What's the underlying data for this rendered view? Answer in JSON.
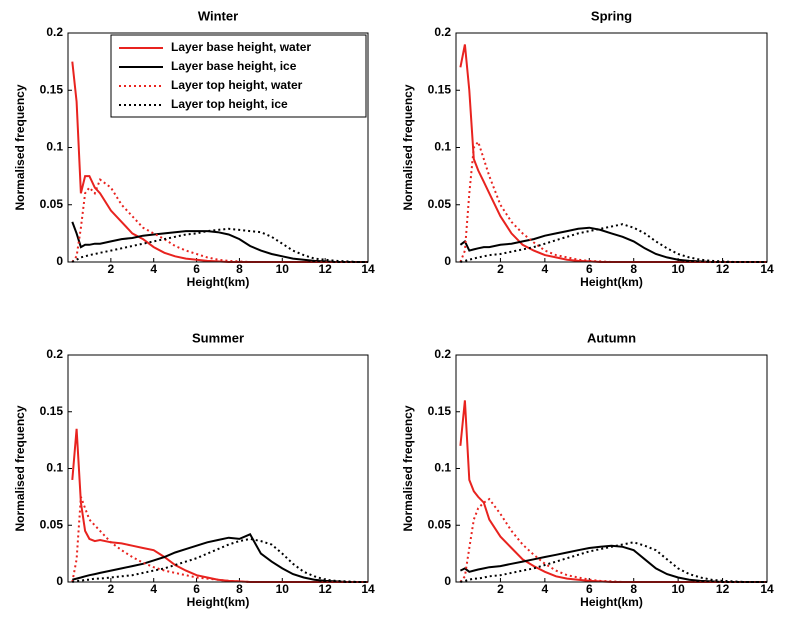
{
  "chart_data": [
    {
      "type": "line",
      "title": "Winter",
      "x_label": "Height(km)",
      "y_label": "Normalised frequency",
      "x": [
        0.2,
        0.4,
        0.6,
        0.8,
        1,
        1.25,
        1.5,
        2,
        2.5,
        3,
        3.5,
        4,
        4.5,
        5,
        5.5,
        6,
        6.5,
        7,
        7.5,
        8,
        8.5,
        9,
        9.5,
        10,
        10.5,
        11,
        11.5,
        12,
        12.5,
        13,
        13.5,
        14
      ],
      "xlim": [
        0,
        14
      ],
      "xticks": [
        2,
        4,
        6,
        8,
        10,
        12,
        14
      ],
      "ylim": [
        0,
        0.2
      ],
      "yticks": [
        0,
        0.05,
        0.1,
        0.15,
        0.2
      ],
      "legend": "upper right",
      "series": [
        {
          "name": "Layer base height, water",
          "color": "#e8231f",
          "linestyle": "solid",
          "values": [
            0.175,
            0.14,
            0.06,
            0.075,
            0.075,
            0.065,
            0.06,
            0.045,
            0.035,
            0.025,
            0.02,
            0.013,
            0.008,
            0.005,
            0.003,
            0.002,
            0.001,
            0.0005,
            0,
            0,
            0,
            0,
            0,
            0,
            0,
            0,
            0,
            0,
            0,
            0,
            0,
            0
          ]
        },
        {
          "name": "Layer base height, ice",
          "color": "#000000",
          "linestyle": "solid",
          "values": [
            0.035,
            0.025,
            0.013,
            0.015,
            0.015,
            0.016,
            0.016,
            0.018,
            0.02,
            0.021,
            0.023,
            0.024,
            0.025,
            0.026,
            0.027,
            0.027,
            0.027,
            0.026,
            0.024,
            0.02,
            0.014,
            0.01,
            0.007,
            0.005,
            0.003,
            0.002,
            0.001,
            0.0005,
            0,
            0,
            0,
            0
          ]
        },
        {
          "name": "Layer top height, water",
          "color": "#e8231f",
          "linestyle": "dotted",
          "values": [
            0,
            0.005,
            0.03,
            0.06,
            0.065,
            0.06,
            0.072,
            0.065,
            0.05,
            0.04,
            0.03,
            0.025,
            0.02,
            0.014,
            0.01,
            0.007,
            0.004,
            0.002,
            0.001,
            0.0005,
            0,
            0,
            0,
            0,
            0,
            0,
            0,
            0,
            0,
            0,
            0,
            0
          ]
        },
        {
          "name": "Layer top height, ice",
          "color": "#000000",
          "linestyle": "dotted",
          "values": [
            0,
            0.002,
            0.004,
            0.005,
            0.006,
            0.007,
            0.008,
            0.01,
            0.012,
            0.014,
            0.016,
            0.018,
            0.02,
            0.022,
            0.024,
            0.025,
            0.027,
            0.028,
            0.029,
            0.028,
            0.027,
            0.026,
            0.022,
            0.016,
            0.01,
            0.006,
            0.003,
            0.002,
            0.001,
            0.0005,
            0,
            0
          ]
        }
      ]
    },
    {
      "type": "line",
      "title": "Spring",
      "x_label": "Height(km)",
      "y_label": "Normalised frequency",
      "x": [
        0.2,
        0.4,
        0.6,
        0.8,
        1,
        1.25,
        1.5,
        2,
        2.5,
        3,
        3.5,
        4,
        4.5,
        5,
        5.5,
        6,
        6.5,
        7,
        7.5,
        8,
        8.5,
        9,
        9.5,
        10,
        10.5,
        11,
        11.5,
        12,
        12.5,
        13,
        13.5,
        14
      ],
      "xlim": [
        0,
        14
      ],
      "xticks": [
        2,
        4,
        6,
        8,
        10,
        12,
        14
      ],
      "ylim": [
        0,
        0.2
      ],
      "yticks": [
        0,
        0.05,
        0.1,
        0.15,
        0.2
      ],
      "series": [
        {
          "color": "#e8231f",
          "linestyle": "solid",
          "values": [
            0.17,
            0.19,
            0.15,
            0.09,
            0.08,
            0.07,
            0.06,
            0.04,
            0.025,
            0.015,
            0.01,
            0.006,
            0.004,
            0.002,
            0.001,
            0.0005,
            0,
            0,
            0,
            0,
            0,
            0,
            0,
            0,
            0,
            0,
            0,
            0,
            0,
            0,
            0,
            0
          ]
        },
        {
          "color": "#000000",
          "linestyle": "solid",
          "values": [
            0.015,
            0.018,
            0.01,
            0.011,
            0.012,
            0.013,
            0.013,
            0.015,
            0.016,
            0.018,
            0.02,
            0.023,
            0.025,
            0.027,
            0.029,
            0.03,
            0.028,
            0.025,
            0.022,
            0.018,
            0.012,
            0.007,
            0.004,
            0.002,
            0.001,
            0.0005,
            0,
            0,
            0,
            0,
            0,
            0
          ]
        },
        {
          "color": "#e8231f",
          "linestyle": "dotted",
          "values": [
            0,
            0.01,
            0.06,
            0.1,
            0.105,
            0.09,
            0.075,
            0.05,
            0.035,
            0.025,
            0.017,
            0.01,
            0.006,
            0.004,
            0.002,
            0.001,
            0.0005,
            0,
            0,
            0,
            0,
            0,
            0,
            0,
            0,
            0,
            0,
            0,
            0,
            0,
            0,
            0
          ]
        },
        {
          "color": "#000000",
          "linestyle": "dotted",
          "values": [
            0,
            0.001,
            0.002,
            0.003,
            0.004,
            0.005,
            0.006,
            0.007,
            0.009,
            0.011,
            0.013,
            0.016,
            0.019,
            0.022,
            0.025,
            0.027,
            0.029,
            0.031,
            0.033,
            0.03,
            0.025,
            0.018,
            0.012,
            0.007,
            0.004,
            0.002,
            0.001,
            0.0005,
            0,
            0,
            0,
            0
          ]
        }
      ]
    },
    {
      "type": "line",
      "title": "Summer",
      "x_label": "Height(km)",
      "y_label": "Normalised frequency",
      "x": [
        0.2,
        0.4,
        0.6,
        0.8,
        1,
        1.25,
        1.5,
        2,
        2.5,
        3,
        3.5,
        4,
        4.5,
        5,
        5.5,
        6,
        6.5,
        7,
        7.5,
        8,
        8.5,
        9,
        9.5,
        10,
        10.5,
        11,
        11.5,
        12,
        12.5,
        13,
        13.5,
        14
      ],
      "xlim": [
        0,
        14
      ],
      "xticks": [
        2,
        4,
        6,
        8,
        10,
        12,
        14
      ],
      "ylim": [
        0,
        0.2
      ],
      "yticks": [
        0,
        0.05,
        0.1,
        0.15,
        0.2
      ],
      "series": [
        {
          "color": "#e8231f",
          "linestyle": "solid",
          "values": [
            0.09,
            0.135,
            0.07,
            0.045,
            0.038,
            0.036,
            0.037,
            0.035,
            0.034,
            0.032,
            0.03,
            0.028,
            0.022,
            0.015,
            0.01,
            0.006,
            0.004,
            0.002,
            0.001,
            0.0005,
            0,
            0,
            0,
            0,
            0,
            0,
            0,
            0,
            0,
            0,
            0,
            0
          ]
        },
        {
          "color": "#000000",
          "linestyle": "solid",
          "values": [
            0.002,
            0.003,
            0.004,
            0.005,
            0.006,
            0.007,
            0.008,
            0.01,
            0.012,
            0.014,
            0.016,
            0.019,
            0.022,
            0.026,
            0.029,
            0.032,
            0.035,
            0.037,
            0.039,
            0.038,
            0.042,
            0.025,
            0.018,
            0.012,
            0.007,
            0.004,
            0.002,
            0.001,
            0.0005,
            0,
            0,
            0
          ]
        },
        {
          "color": "#e8231f",
          "linestyle": "dotted",
          "values": [
            0,
            0.02,
            0.075,
            0.065,
            0.055,
            0.05,
            0.045,
            0.035,
            0.028,
            0.022,
            0.017,
            0.013,
            0.01,
            0.008,
            0.006,
            0.004,
            0.003,
            0.002,
            0.001,
            0.0005,
            0,
            0,
            0,
            0,
            0,
            0,
            0,
            0,
            0,
            0,
            0,
            0
          ]
        },
        {
          "color": "#000000",
          "linestyle": "dotted",
          "values": [
            0,
            0.001,
            0.001,
            0.002,
            0.002,
            0.003,
            0.003,
            0.004,
            0.005,
            0.006,
            0.008,
            0.01,
            0.012,
            0.015,
            0.018,
            0.021,
            0.025,
            0.029,
            0.033,
            0.036,
            0.038,
            0.036,
            0.033,
            0.025,
            0.016,
            0.009,
            0.005,
            0.002,
            0.001,
            0.0005,
            0,
            0
          ]
        }
      ]
    },
    {
      "type": "line",
      "title": "Autumn",
      "x_label": "Height(km)",
      "y_label": "Normalised frequency",
      "x": [
        0.2,
        0.4,
        0.6,
        0.8,
        1,
        1.25,
        1.5,
        2,
        2.5,
        3,
        3.5,
        4,
        4.5,
        5,
        5.5,
        6,
        6.5,
        7,
        7.5,
        8,
        8.5,
        9,
        9.5,
        10,
        10.5,
        11,
        11.5,
        12,
        12.5,
        13,
        13.5,
        14
      ],
      "xlim": [
        0,
        14
      ],
      "xticks": [
        2,
        4,
        6,
        8,
        10,
        12,
        14
      ],
      "ylim": [
        0,
        0.2
      ],
      "yticks": [
        0,
        0.05,
        0.1,
        0.15,
        0.2
      ],
      "series": [
        {
          "color": "#e8231f",
          "linestyle": "solid",
          "values": [
            0.12,
            0.16,
            0.09,
            0.08,
            0.075,
            0.07,
            0.055,
            0.04,
            0.03,
            0.02,
            0.014,
            0.009,
            0.005,
            0.003,
            0.002,
            0.001,
            0.0005,
            0,
            0,
            0,
            0,
            0,
            0,
            0,
            0,
            0,
            0,
            0,
            0,
            0,
            0,
            0
          ]
        },
        {
          "color": "#000000",
          "linestyle": "solid",
          "values": [
            0.01,
            0.012,
            0.009,
            0.01,
            0.011,
            0.012,
            0.013,
            0.014,
            0.016,
            0.018,
            0.02,
            0.022,
            0.024,
            0.026,
            0.028,
            0.03,
            0.031,
            0.032,
            0.031,
            0.028,
            0.02,
            0.012,
            0.007,
            0.004,
            0.002,
            0.001,
            0.0005,
            0,
            0,
            0,
            0,
            0
          ]
        },
        {
          "color": "#e8231f",
          "linestyle": "dotted",
          "values": [
            0,
            0.005,
            0.03,
            0.055,
            0.065,
            0.07,
            0.073,
            0.06,
            0.045,
            0.033,
            0.024,
            0.016,
            0.01,
            0.006,
            0.004,
            0.002,
            0.001,
            0.0005,
            0,
            0,
            0,
            0,
            0,
            0,
            0,
            0,
            0,
            0,
            0,
            0,
            0,
            0
          ]
        },
        {
          "color": "#000000",
          "linestyle": "dotted",
          "values": [
            0,
            0.001,
            0.002,
            0.003,
            0.003,
            0.004,
            0.005,
            0.006,
            0.008,
            0.01,
            0.012,
            0.015,
            0.018,
            0.021,
            0.024,
            0.027,
            0.029,
            0.031,
            0.033,
            0.035,
            0.032,
            0.028,
            0.02,
            0.012,
            0.007,
            0.004,
            0.002,
            0.001,
            0.0005,
            0,
            0,
            0
          ]
        }
      ]
    }
  ]
}
